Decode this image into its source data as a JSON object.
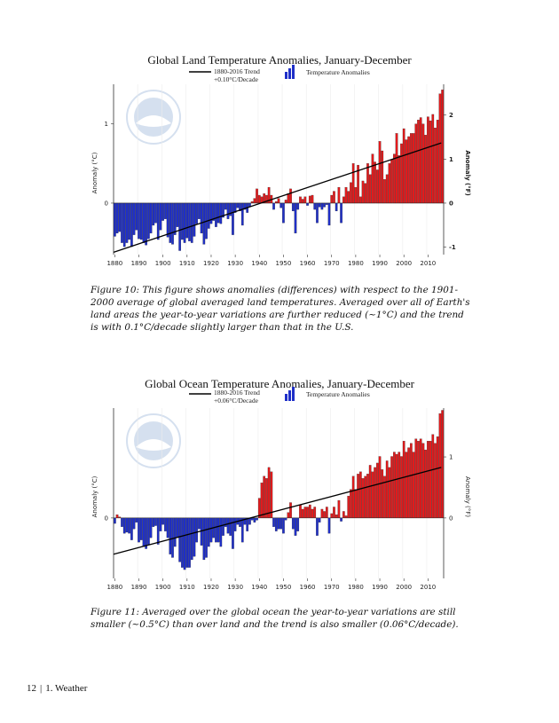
{
  "charts": [
    {
      "title": "Global Land Temperature Anomalies, January-December",
      "legend_trend_line1": "1880-2016 Trend",
      "legend_trend_line2": "+0.10°C/Decade",
      "legend_bars": "Temperature Anomalies",
      "ylabel_left": "Anomaly (°C)",
      "ylabel_right": "Anomaly (°F)",
      "x_ticks": [
        "1880",
        "1890",
        "1900",
        "1910",
        "1920",
        "1930",
        "1940",
        "1950",
        "1960",
        "1970",
        "1980",
        "1990",
        "2000",
        "2010"
      ],
      "y_ticks_left": [
        "0",
        "1"
      ],
      "y_ticks_right": [
        "-1",
        "0",
        "1",
        "2"
      ]
    },
    {
      "title": "Global Ocean Temperature Anomalies, January-December",
      "legend_trend_line1": "1880-2016 Trend",
      "legend_trend_line2": "+0.06°C/Decade",
      "legend_bars": "Temperature Anomalies",
      "ylabel_left": "Anomaly (°C)",
      "ylabel_right": "Anomaly (°F)",
      "x_ticks": [
        "1880",
        "1890",
        "1900",
        "1910",
        "1920",
        "1930",
        "1940",
        "1950",
        "1960",
        "1970",
        "1980",
        "1990",
        "2000",
        "2010"
      ],
      "y_ticks_left": [
        "0"
      ],
      "y_ticks_right": [
        "0",
        "1"
      ]
    }
  ],
  "captions": [
    "Figure 10: This figure shows anomalies (differences) with respect to the 1901-2000 average of global averaged land temperatures. Averaged over all of Earth's land areas the year-to-year variations are further reduced (~1°C) and the trend is with 0.1°C/decade slightly larger than that in the U.S.",
    "Figure 11: Averaged over the global ocean the year-to-year variations are still smaller (~0.5°C) than over land and the trend is also smaller (0.06°C/decade)."
  ],
  "footer": {
    "page": "12",
    "section": "1. Weather"
  },
  "colors": {
    "positive": "#e31a1c",
    "negative": "#1f2fc8",
    "trend": "#000000"
  },
  "chart_data": [
    {
      "type": "bar",
      "title": "Global Land Temperature Anomalies, January-December",
      "xlabel": "",
      "ylabel": "Anomaly (°C)",
      "x_start": 1880,
      "ylim": [
        -0.65,
        1.5
      ],
      "values": [
        -0.42,
        -0.38,
        -0.36,
        -0.5,
        -0.55,
        -0.5,
        -0.46,
        -0.55,
        -0.4,
        -0.34,
        -0.45,
        -0.46,
        -0.5,
        -0.53,
        -0.45,
        -0.38,
        -0.28,
        -0.25,
        -0.46,
        -0.34,
        -0.22,
        -0.2,
        -0.43,
        -0.5,
        -0.52,
        -0.4,
        -0.3,
        -0.6,
        -0.46,
        -0.5,
        -0.44,
        -0.48,
        -0.5,
        -0.42,
        -0.26,
        -0.2,
        -0.38,
        -0.52,
        -0.45,
        -0.32,
        -0.26,
        -0.22,
        -0.3,
        -0.25,
        -0.26,
        -0.18,
        -0.08,
        -0.2,
        -0.16,
        -0.4,
        -0.12,
        -0.06,
        -0.1,
        -0.28,
        -0.08,
        -0.12,
        -0.04,
        0.02,
        0.06,
        0.18,
        0.1,
        0.08,
        0.12,
        0.1,
        0.2,
        0.1,
        -0.08,
        0.02,
        0.06,
        -0.06,
        -0.25,
        0.04,
        0.12,
        0.18,
        -0.1,
        -0.38,
        -0.08,
        0.08,
        0.05,
        0.08,
        -0.03,
        0.09,
        0.1,
        -0.08,
        -0.25,
        -0.05,
        -0.08,
        -0.05,
        -0.02,
        -0.28,
        0.1,
        0.15,
        -0.1,
        0.2,
        -0.25,
        0.08,
        0.2,
        0.15,
        0.26,
        0.5,
        0.2,
        0.48,
        0.08,
        0.28,
        0.25,
        0.5,
        0.36,
        0.62,
        0.52,
        0.42,
        0.78,
        0.66,
        0.3,
        0.36,
        0.5,
        0.55,
        0.62,
        0.88,
        0.6,
        0.75,
        0.94,
        0.8,
        0.84,
        0.88,
        0.88,
        1.0,
        1.05,
        1.08,
        1.0,
        0.86,
        1.09,
        1.04,
        1.12,
        0.95,
        1.05,
        1.38,
        1.43
      ],
      "trend": {
        "start": -0.62,
        "end": 0.76
      }
    },
    {
      "type": "bar",
      "title": "Global Ocean Temperature Anomalies, January-December",
      "xlabel": "",
      "ylabel": "Anomaly (°C)",
      "x_start": 1880,
      "ylim": [
        -0.55,
        1.0
      ],
      "values": [
        -0.05,
        0.03,
        0.01,
        -0.08,
        -0.14,
        -0.13,
        -0.14,
        -0.2,
        -0.1,
        -0.04,
        -0.22,
        -0.2,
        -0.26,
        -0.28,
        -0.24,
        -0.18,
        -0.08,
        -0.07,
        -0.24,
        -0.12,
        -0.06,
        -0.12,
        -0.18,
        -0.33,
        -0.36,
        -0.26,
        -0.18,
        -0.4,
        -0.45,
        -0.47,
        -0.45,
        -0.45,
        -0.38,
        -0.35,
        -0.22,
        -0.1,
        -0.25,
        -0.38,
        -0.36,
        -0.26,
        -0.22,
        -0.18,
        -0.22,
        -0.22,
        -0.26,
        -0.16,
        -0.08,
        -0.14,
        -0.16,
        -0.28,
        -0.12,
        -0.06,
        -0.08,
        -0.22,
        -0.06,
        -0.12,
        -0.06,
        -0.02,
        -0.04,
        -0.02,
        0.18,
        0.32,
        0.38,
        0.36,
        0.46,
        0.42,
        -0.08,
        -0.12,
        -0.1,
        -0.1,
        -0.14,
        -0.02,
        0.05,
        0.14,
        -0.1,
        -0.16,
        -0.12,
        0.12,
        0.08,
        0.1,
        0.1,
        0.12,
        0.08,
        0.1,
        -0.16,
        -0.04,
        0.08,
        0.06,
        0.1,
        -0.14,
        0.04,
        0.1,
        0.03,
        0.16,
        -0.03,
        0.06,
        0.02,
        0.2,
        0.26,
        0.38,
        0.26,
        0.4,
        0.42,
        0.36,
        0.38,
        0.4,
        0.48,
        0.42,
        0.46,
        0.5,
        0.56,
        0.44,
        0.38,
        0.52,
        0.46,
        0.56,
        0.6,
        0.58,
        0.6,
        0.56,
        0.7,
        0.6,
        0.64,
        0.68,
        0.6,
        0.72,
        0.7,
        0.72,
        0.68,
        0.62,
        0.7,
        0.7,
        0.76,
        0.68,
        0.74,
        0.95,
        0.98
      ],
      "trend": {
        "start": -0.33,
        "end": 0.46
      }
    }
  ]
}
